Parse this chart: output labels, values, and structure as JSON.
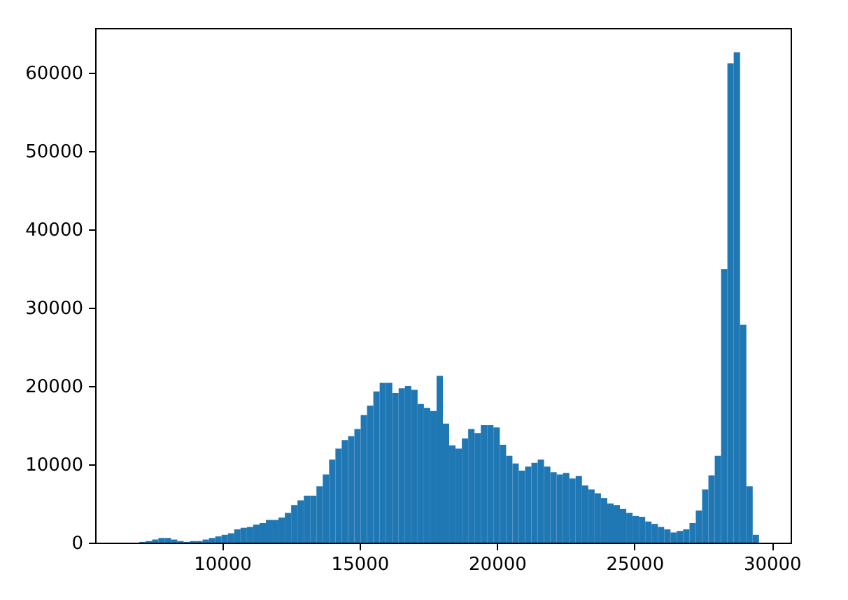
{
  "chart_data": {
    "type": "histogram",
    "bins": [
      6530,
      6760,
      6990,
      7220,
      7450,
      7680,
      7910,
      8140,
      8370,
      8600,
      8830,
      9060,
      9290,
      9520,
      9750,
      9980,
      10210,
      10440,
      10670,
      10900,
      11130,
      11360,
      11590,
      11820,
      12050,
      12280,
      12510,
      12740,
      12970,
      13200,
      13430,
      13660,
      13890,
      14120,
      14350,
      14580,
      14810,
      15040,
      15270,
      15500,
      15730,
      15960,
      16190,
      16420,
      16650,
      16880,
      17110,
      17340,
      17570,
      17800,
      18030,
      18260,
      18490,
      18720,
      18950,
      19180,
      19410,
      19640,
      19870,
      20100,
      20330,
      20560,
      20790,
      21020,
      21250,
      21480,
      21710,
      21940,
      22170,
      22400,
      22630,
      22860,
      23090,
      23320,
      23550,
      23780,
      24010,
      24240,
      24470,
      24700,
      24930,
      25160,
      25390,
      25620,
      25850,
      26080,
      26310,
      26540,
      26770,
      27000,
      27230,
      27460,
      27690,
      27920,
      28150,
      28380,
      28610,
      28840,
      29070,
      29300,
      29530
    ],
    "values": [
      0,
      0,
      100,
      200,
      400,
      600,
      600,
      400,
      200,
      100,
      200,
      200,
      400,
      600,
      800,
      1000,
      1200,
      1700,
      1900,
      2000,
      2300,
      2500,
      2900,
      2900,
      3200,
      3800,
      4800,
      5400,
      6000,
      6000,
      7200,
      8700,
      10600,
      12000,
      13100,
      13600,
      14500,
      16300,
      17500,
      19300,
      20400,
      20400,
      19100,
      19700,
      20000,
      19500,
      17700,
      17200,
      16800,
      21300,
      15200,
      12400,
      12000,
      13300,
      14500,
      14000,
      15000,
      15000,
      14700,
      12500,
      11100,
      10100,
      9200,
      9700,
      10200,
      10600,
      9700,
      9000,
      8700,
      8900,
      8200,
      8500,
      7300,
      6800,
      6300,
      5700,
      5000,
      4800,
      4300,
      3800,
      3400,
      3300,
      2700,
      2400,
      2000,
      1700,
      1300,
      1500,
      1700,
      2500,
      4100,
      6800,
      8600,
      11100,
      34900,
      61200,
      62600,
      27800,
      7200,
      1000
    ],
    "color": "#1f77b4",
    "xlim": [
      5380,
      30680
    ],
    "xticks": [
      10000,
      15000,
      20000,
      25000,
      30000
    ],
    "ylim": [
      0,
      65700
    ],
    "yticks": [
      0,
      10000,
      20000,
      30000,
      40000,
      50000,
      60000
    ]
  }
}
